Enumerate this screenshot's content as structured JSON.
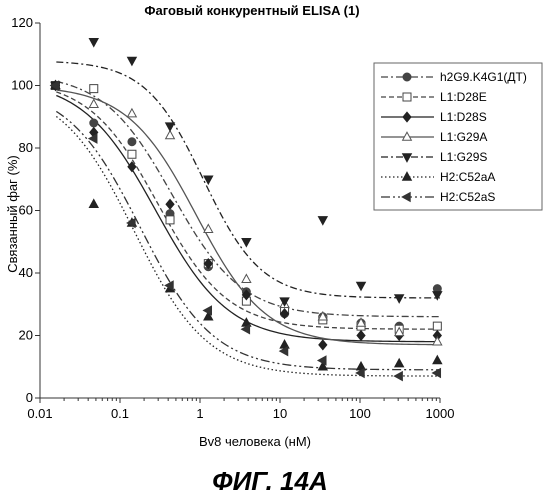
{
  "figure_label": "ФИГ. 14А",
  "chart_data": {
    "type": "scatter",
    "title": "Фаговый конкурентный ELISA (1)",
    "xlabel": "Bv8 человека (нМ)",
    "ylabel": "Связанный фаг (%)",
    "x_scale": "log",
    "xlim": [
      0.01,
      1000
    ],
    "ylim": [
      0,
      120
    ],
    "x_ticks": [
      "0.01",
      "0.1",
      "1",
      "10",
      "100",
      "1000"
    ],
    "y_ticks": [
      "0",
      "20",
      "40",
      "60",
      "80",
      "100",
      "120"
    ],
    "grid": false,
    "legend_position": "top-right",
    "x": [
      0.0156,
      0.047,
      0.141,
      0.422,
      1.27,
      3.8,
      11.4,
      34.3,
      103,
      309,
      926
    ],
    "series": [
      {
        "name": "h2G9.K4G1(ДТ)",
        "marker": "circle-filled",
        "dash": "dashdot",
        "color": "#444444",
        "values": [
          100,
          88,
          82,
          59,
          42,
          34,
          27,
          26,
          24,
          23,
          35
        ],
        "fit": {
          "bottom": 26,
          "top": 104,
          "ec50": 0.45,
          "hill": 1.0
        }
      },
      {
        "name": "L1:D28E",
        "marker": "square-open",
        "dash": "dashed",
        "color": "#444444",
        "values": [
          100,
          99,
          78,
          57,
          43,
          31,
          28,
          25,
          23,
          22,
          23
        ],
        "fit": {
          "bottom": 22,
          "top": 102,
          "ec50": 0.3,
          "hill": 1.0
        }
      },
      {
        "name": "L1:D28S",
        "marker": "diamond-filled",
        "dash": "solid",
        "color": "#222222",
        "values": [
          100,
          85,
          74,
          62,
          43,
          33,
          27,
          17,
          20,
          20,
          20
        ],
        "fit": {
          "bottom": 18,
          "top": 102,
          "ec50": 0.28,
          "hill": 0.95
        }
      },
      {
        "name": "L1:G29A",
        "marker": "triangle-open",
        "dash": "solid",
        "color": "#555555",
        "values": [
          100,
          94,
          91,
          84,
          54,
          38,
          30,
          26,
          24,
          21,
          18
        ],
        "fit": {
          "bottom": 17,
          "top": 100,
          "ec50": 0.9,
          "hill": 1.0
        }
      },
      {
        "name": "L1:G29S",
        "marker": "triangle-down-filled",
        "dash": "dashdot",
        "color": "#222222",
        "values": [
          100,
          114,
          108,
          87,
          70,
          50,
          31,
          57,
          36,
          32,
          33
        ],
        "fit": {
          "bottom": 32,
          "top": 108,
          "ec50": 1.1,
          "hill": 1.2
        }
      },
      {
        "name": "H2:C52aA",
        "marker": "triangle-filled",
        "dash": "dotted",
        "color": "#222222",
        "values": [
          100,
          62,
          56,
          35,
          26,
          24,
          17,
          10,
          10,
          11,
          12
        ],
        "fit": {
          "bottom": 7,
          "top": 100,
          "ec50": 0.15,
          "hill": 0.95
        }
      },
      {
        "name": "H2:C52aS",
        "marker": "triangle-left-filled",
        "dash": "dashdot2",
        "color": "#333333",
        "values": [
          100,
          83,
          56,
          36,
          28,
          22,
          15,
          12,
          8,
          7,
          8
        ],
        "fit": {
          "bottom": 9,
          "top": 100,
          "ec50": 0.18,
          "hill": 0.95
        }
      }
    ]
  }
}
